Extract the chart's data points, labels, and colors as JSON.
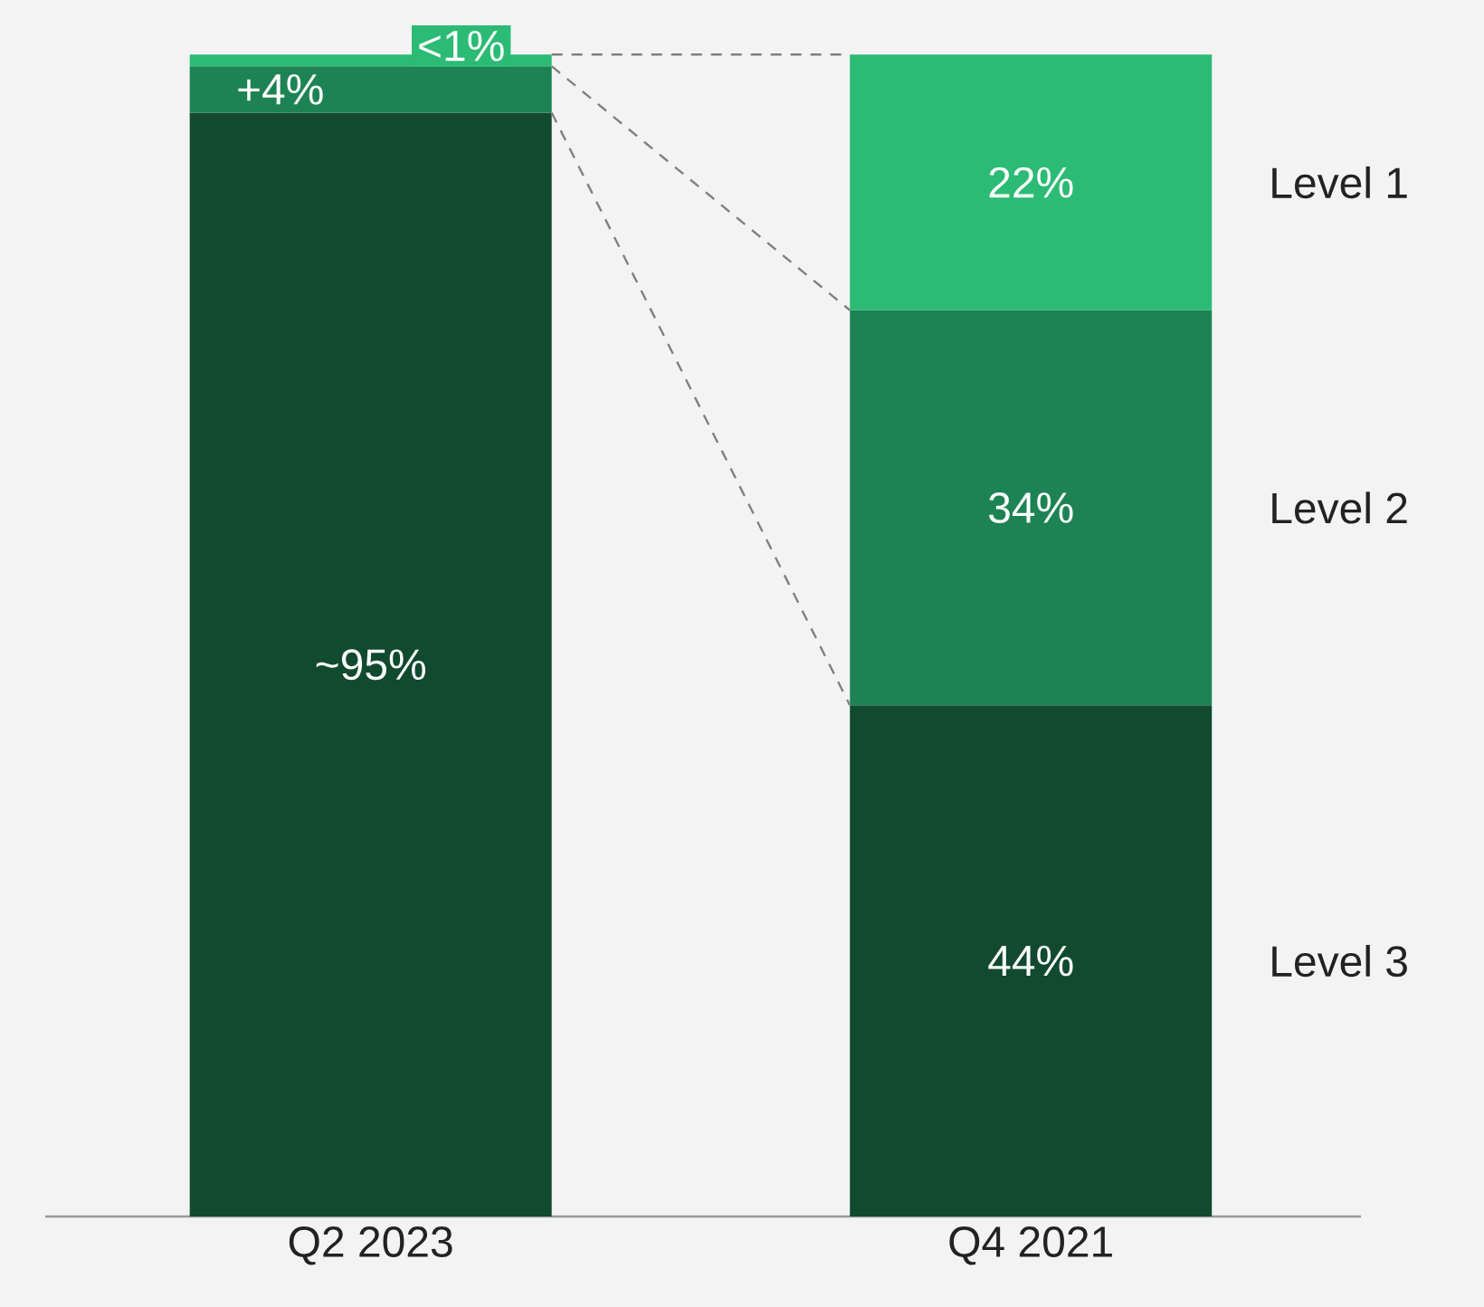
{
  "chart_data": {
    "type": "bar",
    "stacked": true,
    "categories": [
      "Q2 2023",
      "Q4 2021"
    ],
    "series": [
      {
        "name": "Level 3",
        "color": "#114a2f",
        "values": [
          95,
          44
        ],
        "value_labels": [
          "~95%",
          "44%"
        ]
      },
      {
        "name": "Level 2",
        "color": "#1e8354",
        "values": [
          4,
          34
        ],
        "value_labels": [
          "+4%",
          "34%"
        ]
      },
      {
        "name": "Level 1",
        "color": "#2bbb74",
        "values": [
          1,
          22
        ],
        "value_labels": [
          "<1%",
          "22%"
        ]
      }
    ]
  }
}
